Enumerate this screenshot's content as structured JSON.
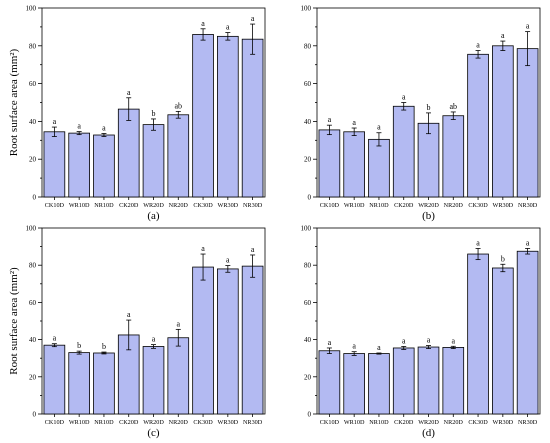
{
  "figure": {
    "bar_color": "#b3baf2",
    "bar_edge_color": "#000000"
  },
  "chart_data": [
    {
      "type": "bar",
      "panel": "(a)",
      "ylabel": "Root surface area (mm²)",
      "ylim": [
        0,
        100
      ],
      "yticks": [
        0,
        20,
        40,
        60,
        80,
        100
      ],
      "categories": [
        "CK10D",
        "WR10D",
        "NR10D",
        "CK20D",
        "WR20D",
        "NR20D",
        "CK30D",
        "WR30D",
        "NR30D"
      ],
      "values": [
        34.5,
        33.8,
        32.8,
        46.5,
        38.3,
        43.5,
        86.0,
        85.0,
        83.5
      ],
      "errors": [
        2.5,
        0.8,
        0.8,
        6.0,
        3.0,
        1.8,
        3.0,
        2.0,
        8.0
      ],
      "significance": [
        "a",
        "a",
        "a",
        "a",
        "b",
        "ab",
        "a",
        "a",
        "a"
      ]
    },
    {
      "type": "bar",
      "panel": "(b)",
      "ylabel": "",
      "ylim": [
        0,
        100
      ],
      "yticks": [
        0,
        20,
        40,
        60,
        80,
        100
      ],
      "categories": [
        "CK10D",
        "WR10D",
        "NR10D",
        "CK20D",
        "WR20D",
        "NR20D",
        "CK30D",
        "WR30D",
        "NR30D"
      ],
      "values": [
        35.5,
        34.5,
        30.5,
        48.0,
        39.0,
        43.0,
        75.5,
        80.0,
        78.5
      ],
      "errors": [
        2.5,
        2.0,
        3.5,
        2.0,
        5.5,
        2.0,
        2.0,
        2.5,
        9.0
      ],
      "significance": [
        "a",
        "a",
        "a",
        "a",
        "b",
        "ab",
        "a",
        "a",
        "a"
      ]
    },
    {
      "type": "bar",
      "panel": "(c)",
      "ylabel": "Root surface area (mm²)",
      "ylim": [
        0,
        100
      ],
      "yticks": [
        0,
        20,
        40,
        60,
        80,
        100
      ],
      "categories": [
        "CK10D",
        "WR10D",
        "NR10D",
        "CK20D",
        "WR20D",
        "NR20D",
        "CK30D",
        "WR30D",
        "NR30D"
      ],
      "values": [
        37.0,
        33.0,
        32.8,
        42.5,
        36.3,
        41.0,
        79.0,
        78.0,
        79.5
      ],
      "errors": [
        0.8,
        0.8,
        0.5,
        8.0,
        1.0,
        4.5,
        7.0,
        1.8,
        6.0
      ],
      "significance": [
        "a",
        "b",
        "b",
        "a",
        "a",
        "a",
        "a",
        "a",
        "a"
      ]
    },
    {
      "type": "bar",
      "panel": "(d)",
      "ylabel": "",
      "ylim": [
        0,
        100
      ],
      "yticks": [
        0,
        20,
        40,
        60,
        80,
        100
      ],
      "categories": [
        "CK10D",
        "WR10D",
        "NR10D",
        "CK20D",
        "WR20D",
        "NR20D",
        "CK30D",
        "WR30D",
        "NR30D"
      ],
      "values": [
        34.0,
        32.5,
        32.5,
        35.5,
        36.0,
        35.8,
        86.0,
        78.5,
        87.5
      ],
      "errors": [
        1.5,
        1.0,
        0.3,
        0.8,
        0.8,
        0.6,
        3.0,
        2.0,
        1.5
      ],
      "significance": [
        "a",
        "a",
        "a",
        "a",
        "a",
        "a",
        "a",
        "b",
        "a"
      ]
    }
  ]
}
